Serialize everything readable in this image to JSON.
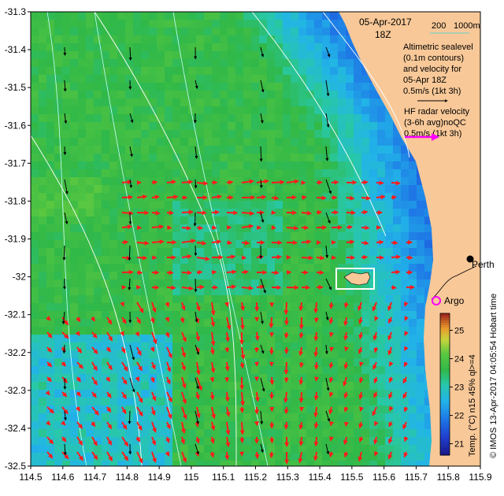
{
  "map": {
    "date": "05-Apr-2017",
    "time": "18Z",
    "scale_label": "200",
    "scale_label_2": "1000m",
    "altimetry_lines": [
      "Altimetric sealevel",
      "(0.1m contours)",
      "and velocity for",
      "05-Apr 18Z",
      "0.5m/s (1kt 3h)"
    ],
    "hf_lines": [
      "HF radar velocity",
      "(3-6h avg)noQC",
      "0.5m/s (1kt 3h)"
    ],
    "places": {
      "perth": "Perth",
      "argo": "Argo"
    },
    "colorbar": {
      "label": "Temp. (°C) n15 45% ql>=4",
      "ticks": [
        "25",
        "24",
        "23",
        "22",
        "21"
      ],
      "range": [
        20.6,
        25.6
      ]
    },
    "credit": "© IMOS 13-Apr-2017 04:05:54 Hobart time",
    "lat_ticks": [
      "-31.3",
      "-31.4",
      "-31.5",
      "-31.6",
      "-31.7",
      "-31.8",
      "-31.9",
      "-32",
      "-32.1",
      "-32.2",
      "-32.3",
      "-32.4",
      "-32.5"
    ],
    "lon_ticks": [
      "114.5",
      "114.6",
      "114.7",
      "114.8",
      "114.9",
      "115",
      "115.1",
      "115.2",
      "115.3",
      "115.4",
      "115.5",
      "115.6",
      "115.7",
      "115.8",
      "115.9"
    ],
    "colors": {
      "land": "#f8c898",
      "hf_arrow": "#ff1a1a",
      "alt_arrow": "#000000",
      "argo": "#ff00ff",
      "contour": "#c8ffff"
    }
  }
}
